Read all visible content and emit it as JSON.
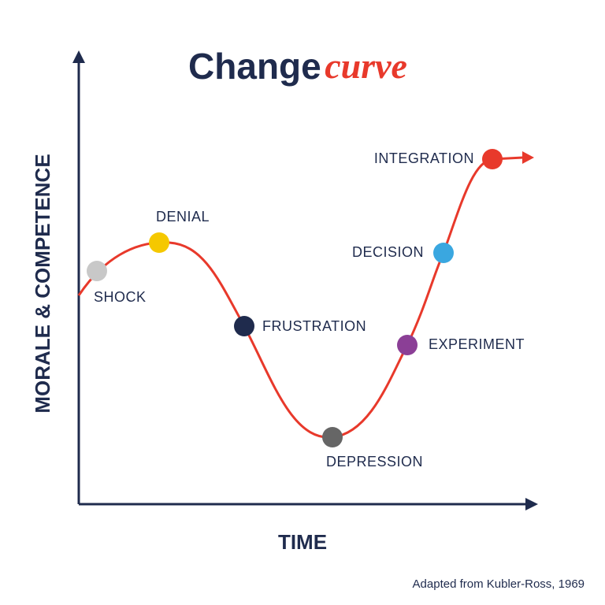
{
  "title": {
    "main": "Change",
    "accent": "curve"
  },
  "axes": {
    "y": "MORALE & COMPETENCE",
    "x": "TIME"
  },
  "stages": [
    {
      "label": "SHOCK"
    },
    {
      "label": "DENIAL"
    },
    {
      "label": "FRUSTRATION"
    },
    {
      "label": "DEPRESSION"
    },
    {
      "label": "EXPERIMENT"
    },
    {
      "label": "DECISION"
    },
    {
      "label": "INTEGRATION"
    }
  ],
  "caption": "Adapted from Kubler-Ross, 1969"
}
